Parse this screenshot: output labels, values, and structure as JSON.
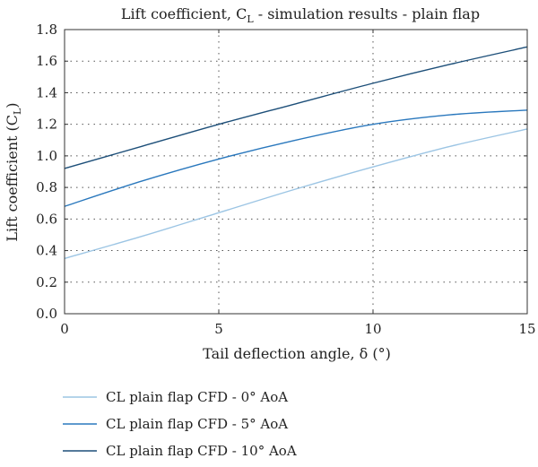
{
  "chart_data": {
    "type": "line",
    "title": "Lift coefficient, C",
    "title_subscript": "L",
    "title_suffix": " - simulation results - plain flap",
    "xlabel": "Tail deflection angle, δ (°)",
    "ylabel": "Lift coefficient (C",
    "ylabel_subscript": "L",
    "ylabel_suffix": ")",
    "xlim": [
      0,
      15
    ],
    "ylim": [
      0,
      1.8
    ],
    "xticks": [
      0,
      5,
      10,
      15
    ],
    "xtick_labels": [
      "0",
      "5",
      "10",
      "15"
    ],
    "yticks": [
      0,
      0.2,
      0.4,
      0.6,
      0.8,
      1.0,
      1.2,
      1.4,
      1.6,
      1.8
    ],
    "ytick_labels": [
      "0.0",
      "0.2",
      "0.4",
      "0.6",
      "0.8",
      "1.0",
      "1.2",
      "1.4",
      "1.6",
      "1.8"
    ],
    "grid": "dotted",
    "legend_position": "bottom",
    "series": [
      {
        "name": "CL plain flap CFD - 0° AoA",
        "color": "#9cc5e4",
        "x": [
          0,
          2.5,
          5,
          7.5,
          10,
          12.5,
          15
        ],
        "y": [
          0.35,
          0.49,
          0.64,
          0.79,
          0.93,
          1.06,
          1.17
        ]
      },
      {
        "name": "CL plain flap CFD - 5° AoA",
        "color": "#2a78bd",
        "x": [
          0,
          2.5,
          5,
          7.5,
          10,
          12.5,
          15
        ],
        "y": [
          0.68,
          0.84,
          0.98,
          1.1,
          1.2,
          1.26,
          1.29
        ]
      },
      {
        "name": "CL plain flap CFD - 10° AoA",
        "color": "#1d4f79",
        "x": [
          0,
          2.5,
          5,
          7.5,
          10,
          12.5,
          15
        ],
        "y": [
          0.92,
          1.06,
          1.2,
          1.33,
          1.46,
          1.58,
          1.69
        ]
      }
    ]
  }
}
